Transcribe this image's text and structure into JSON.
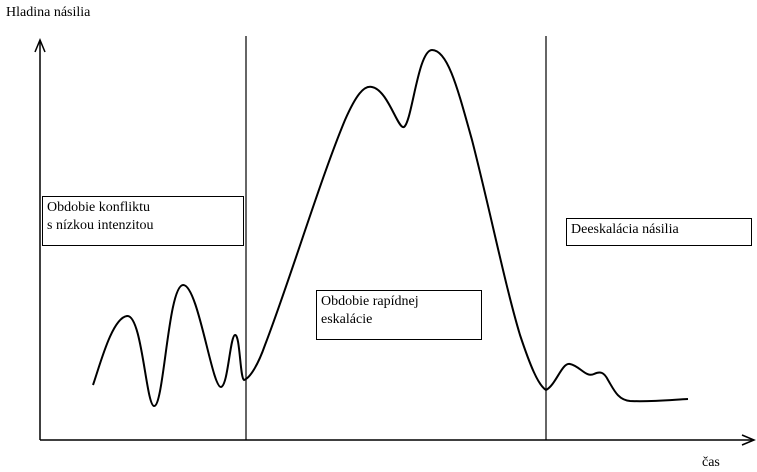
{
  "axes": {
    "y_label": "Hladina násilia",
    "x_label": "čas"
  },
  "phases": [
    {
      "lines": [
        "Obdobie konfliktu",
        "s nízkou intenzitou"
      ]
    },
    {
      "lines": [
        "Obdobie rapídnej",
        "eskalácie"
      ]
    },
    {
      "lines": [
        "Deeskalácia násilia"
      ]
    }
  ]
}
